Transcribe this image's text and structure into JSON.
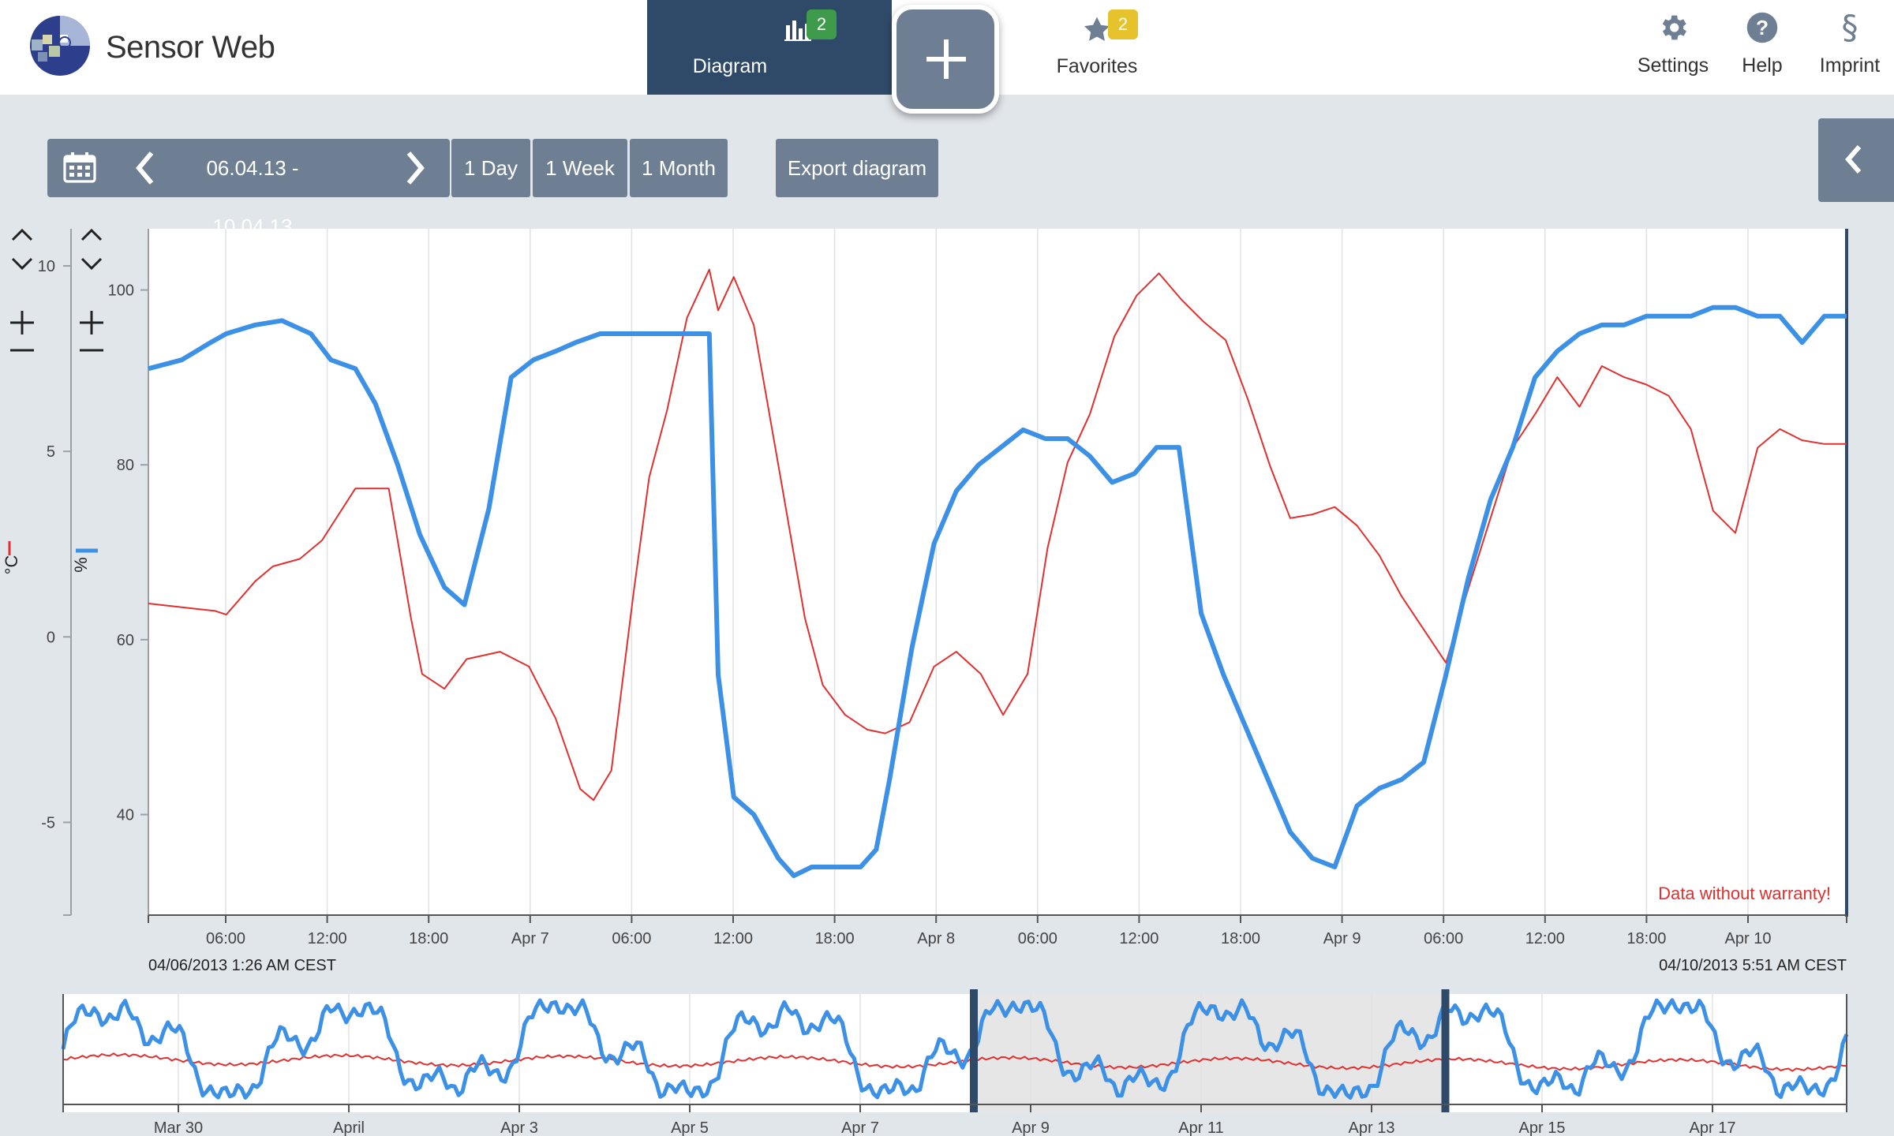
{
  "app": {
    "name": "Sensor Web"
  },
  "nav": {
    "diagram": {
      "label": "Diagram",
      "badge": "2",
      "icon": "bar-chart-icon"
    },
    "add": {
      "icon": "plus-icon"
    },
    "favorites": {
      "label": "Favorites",
      "badge": "2",
      "icon": "star-icon"
    }
  },
  "tools": {
    "settings": {
      "label": "Settings",
      "icon": "gear-icon"
    },
    "help": {
      "label": "Help",
      "icon": "question-icon"
    },
    "imprint": {
      "label": "Imprint",
      "icon": "section-icon"
    }
  },
  "timebar": {
    "range": "06.04.13 - 10.04.13",
    "day": "1 Day",
    "week": "1 Week",
    "month": "1 Month",
    "export": "Export diagram"
  },
  "colors": {
    "temp": "#e03030",
    "humidity": "#3c91e6",
    "navy": "#2f4a68",
    "button": "#6e7f94"
  },
  "chart_data": [
    {
      "type": "line",
      "x_ticks": [
        "06:00",
        "12:00",
        "18:00",
        "Apr 7",
        "06:00",
        "12:00",
        "18:00",
        "Apr 8",
        "06:00",
        "12:00",
        "18:00",
        "Apr 9",
        "06:00",
        "12:00",
        "18:00",
        "Apr 10"
      ],
      "x_start_label": "04/06/2013 1:26 AM CEST",
      "x_end_label": "04/10/2013 5:51 AM CEST",
      "annotation": "Data without warranty!",
      "y_axes": [
        {
          "unit": "°C",
          "ticks": [
            "10",
            "5",
            "0",
            "-5"
          ],
          "range": [
            -7.5,
            11
          ]
        },
        {
          "unit": "%",
          "ticks": [
            "100",
            "80",
            "60",
            "40"
          ],
          "range": [
            28.5,
            107
          ]
        }
      ],
      "series": [
        {
          "axis": "°C",
          "color": "#e03030",
          "points": [
            [
              0,
              0.9
            ],
            [
              1.5,
              0.8
            ],
            [
              3,
              0.7
            ],
            [
              3.5,
              0.6
            ],
            [
              4.8,
              1.5
            ],
            [
              5.6,
              1.9
            ],
            [
              6.8,
              2.1
            ],
            [
              7.8,
              2.6
            ],
            [
              9.3,
              4.0
            ],
            [
              10.8,
              4.0
            ],
            [
              11.8,
              0.5
            ],
            [
              12.3,
              -1.0
            ],
            [
              13.3,
              -1.4
            ],
            [
              14.3,
              -0.6
            ],
            [
              15.8,
              -0.4
            ],
            [
              17.1,
              -0.8
            ],
            [
              18.3,
              -2.2
            ],
            [
              19.4,
              -4.1
            ],
            [
              20.0,
              -4.4
            ],
            [
              20.8,
              -3.6
            ],
            [
              21.8,
              1.2
            ],
            [
              22.5,
              4.3
            ],
            [
              23.3,
              6.1
            ],
            [
              24.2,
              8.6
            ],
            [
              25.2,
              9.9
            ],
            [
              25.6,
              8.8
            ],
            [
              26.3,
              9.7
            ],
            [
              27.2,
              8.4
            ],
            [
              28.4,
              4.3
            ],
            [
              29.5,
              0.5
            ],
            [
              30.3,
              -1.3
            ],
            [
              31.3,
              -2.1
            ],
            [
              32.3,
              -2.5
            ],
            [
              33.1,
              -2.6
            ],
            [
              34.2,
              -2.3
            ],
            [
              35.3,
              -0.8
            ],
            [
              36.3,
              -0.4
            ],
            [
              37.4,
              -1.0
            ],
            [
              38.4,
              -2.1
            ],
            [
              39.5,
              -1.0
            ],
            [
              40.4,
              2.4
            ],
            [
              41.3,
              4.7
            ],
            [
              42.3,
              6.0
            ],
            [
              43.4,
              8.1
            ],
            [
              44.4,
              9.2
            ],
            [
              45.4,
              9.8
            ],
            [
              46.4,
              9.1
            ],
            [
              47.4,
              8.5
            ],
            [
              48.4,
              8.0
            ],
            [
              49.4,
              6.4
            ],
            [
              50.4,
              4.6
            ],
            [
              51.3,
              3.2
            ],
            [
              52.3,
              3.3
            ],
            [
              53.3,
              3.5
            ],
            [
              54.3,
              3.0
            ],
            [
              55.3,
              2.2
            ],
            [
              56.3,
              1.1
            ],
            [
              57.3,
              0.2
            ],
            [
              58.3,
              -0.7
            ],
            [
              59.3,
              1.3
            ],
            [
              60.3,
              3.2
            ],
            [
              61.3,
              5.1
            ],
            [
              62.3,
              6.0
            ],
            [
              63.3,
              7.0
            ],
            [
              64.3,
              6.2
            ],
            [
              65.3,
              7.3
            ],
            [
              66.3,
              7.0
            ],
            [
              67.3,
              6.8
            ],
            [
              68.3,
              6.5
            ],
            [
              69.3,
              5.6
            ],
            [
              70.3,
              3.4
            ],
            [
              71.3,
              2.8
            ],
            [
              72.3,
              5.1
            ],
            [
              73.3,
              5.6
            ],
            [
              74.3,
              5.3
            ],
            [
              75.3,
              5.2
            ],
            [
              76.3,
              5.2
            ]
          ]
        },
        {
          "axis": "%",
          "color": "#3c91e6",
          "points": [
            [
              0,
              91
            ],
            [
              1.5,
              92
            ],
            [
              2.8,
              94
            ],
            [
              3.5,
              95
            ],
            [
              4.8,
              96
            ],
            [
              6.0,
              96.5
            ],
            [
              7.3,
              95
            ],
            [
              8.2,
              92
            ],
            [
              9.3,
              91
            ],
            [
              10.2,
              87
            ],
            [
              11.2,
              80
            ],
            [
              12.2,
              72
            ],
            [
              13.3,
              66
            ],
            [
              14.2,
              64
            ],
            [
              15.3,
              75
            ],
            [
              16.3,
              90
            ],
            [
              17.3,
              92
            ],
            [
              18.3,
              93
            ],
            [
              19.2,
              94
            ],
            [
              20.3,
              95
            ],
            [
              22.3,
              95
            ],
            [
              24.3,
              95
            ],
            [
              25.2,
              95
            ],
            [
              25.6,
              56
            ],
            [
              26.3,
              42
            ],
            [
              27.2,
              40
            ],
            [
              28.3,
              35
            ],
            [
              29.0,
              33
            ],
            [
              29.8,
              34
            ],
            [
              30.6,
              34
            ],
            [
              31.3,
              34
            ],
            [
              32.0,
              34
            ],
            [
              32.7,
              36
            ],
            [
              33.3,
              44
            ],
            [
              34.3,
              59
            ],
            [
              35.3,
              71
            ],
            [
              36.3,
              77
            ],
            [
              37.3,
              80
            ],
            [
              38.3,
              82
            ],
            [
              39.3,
              84
            ],
            [
              40.3,
              83
            ],
            [
              41.3,
              83
            ],
            [
              42.3,
              81
            ],
            [
              43.3,
              78
            ],
            [
              44.3,
              79
            ],
            [
              45.3,
              82
            ],
            [
              46.3,
              82
            ],
            [
              47.3,
              63
            ],
            [
              48.3,
              56
            ],
            [
              49.3,
              50
            ],
            [
              50.3,
              44
            ],
            [
              51.3,
              38
            ],
            [
              52.3,
              35
            ],
            [
              53.3,
              34
            ],
            [
              54.3,
              41
            ],
            [
              55.3,
              43
            ],
            [
              56.3,
              44
            ],
            [
              57.3,
              46
            ],
            [
              58.3,
              56
            ],
            [
              59.3,
              67
            ],
            [
              60.3,
              76
            ],
            [
              61.3,
              82
            ],
            [
              62.3,
              90
            ],
            [
              63.3,
              93
            ],
            [
              64.3,
              95
            ],
            [
              65.3,
              96
            ],
            [
              66.3,
              96
            ],
            [
              67.3,
              97
            ],
            [
              68.3,
              97
            ],
            [
              69.3,
              97
            ],
            [
              70.3,
              98
            ],
            [
              71.3,
              98
            ],
            [
              72.3,
              97
            ],
            [
              73.3,
              97
            ],
            [
              74.3,
              94
            ],
            [
              75.3,
              97
            ],
            [
              76.3,
              97
            ]
          ]
        }
      ]
    },
    {
      "type": "line",
      "role": "overview",
      "x_ticks": [
        "Mar 30",
        "April",
        "Apr 3",
        "Apr 5",
        "Apr 7",
        "Apr 9",
        "Apr 11",
        "Apr 13",
        "Apr 15",
        "Apr 17"
      ],
      "selection": [
        8.17,
        12.4
      ]
    }
  ]
}
